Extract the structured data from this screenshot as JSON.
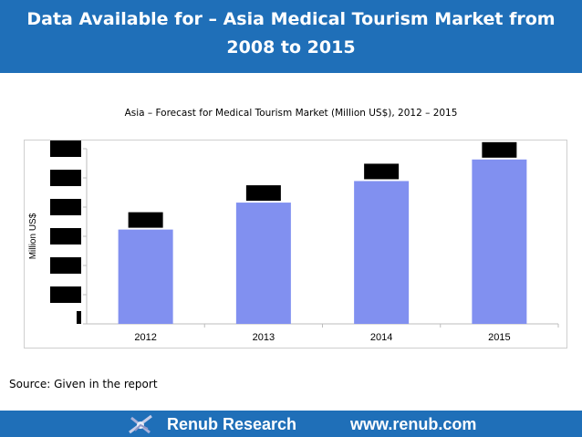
{
  "header": {
    "title_line1": "Data Available for – Asia Medical Tourism Market from",
    "title_line2": "2008 to 2015"
  },
  "chart_title": "Asia – Forecast for Medical Tourism Market (Million US$), 2012 – 2015",
  "source": "Source: Given in the report",
  "footer": {
    "brand": "Renub Research",
    "url": "www.renub.com",
    "logo_icon": "renub-logo-icon"
  },
  "colors": {
    "header_bg": "#1f6fb8",
    "bar": "#8190f0",
    "redaction": "#000000"
  },
  "chart_data": {
    "type": "bar",
    "title": "Asia – Forecast for Medical Tourism Market (Million US$), 2012 – 2015",
    "xlabel": "",
    "ylabel": "Million US$",
    "categories": [
      "2012",
      "2013",
      "2014",
      "2015"
    ],
    "values": [
      3.5,
      4.5,
      5.3,
      6.1
    ],
    "ylim": [
      0,
      6.5
    ],
    "y_ticks_redacted": true,
    "data_labels_redacted": true,
    "grid": false,
    "legend": "none"
  }
}
